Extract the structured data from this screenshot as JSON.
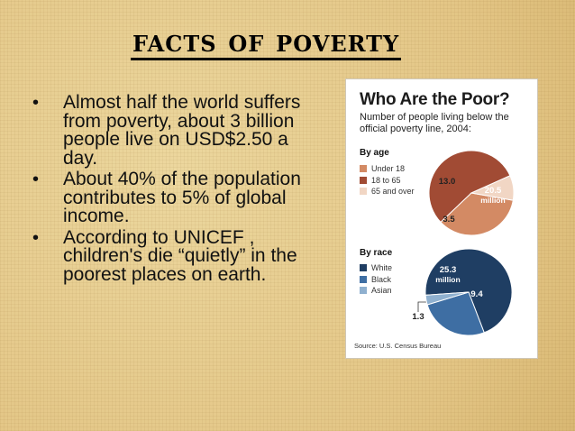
{
  "title": "Facts of Poverty",
  "bullets": [
    "Almost half the world suffers from poverty, about 3 billion people live on USD$2.50 a day.",
    "About 40% of the population contributes to 5% of global income.",
    "According to UNICEF , children's die “quietly” in the poorest places on earth."
  ],
  "bullet_char": "•",
  "chart": {
    "title": "Who Are the Poor?",
    "subtitle": "Number of people living below the official poverty line, 2004:",
    "source": "Source: U.S. Census Bureau",
    "by_age": {
      "label": "By age",
      "legend": [
        {
          "name": "Under 18",
          "value": 13.0,
          "display": "13.0",
          "color": "#d38a64"
        },
        {
          "name": "18 to 65",
          "value": 20.5,
          "display": "20.5",
          "color": "#a14b34"
        },
        {
          "name": "65 and over",
          "value": 3.5,
          "display": "3.5",
          "color": "#f1d6c4"
        }
      ],
      "unit": "million"
    },
    "by_race": {
      "label": "By race",
      "legend": [
        {
          "name": "White",
          "value": 25.3,
          "display": "25.3",
          "color": "#1f3e63"
        },
        {
          "name": "Black",
          "value": 9.4,
          "display": "9.4",
          "color": "#3e6ea3"
        },
        {
          "name": "Asian",
          "value": 1.3,
          "display": "1.3",
          "color": "#8fb0cf"
        }
      ],
      "unit": "million"
    }
  }
}
